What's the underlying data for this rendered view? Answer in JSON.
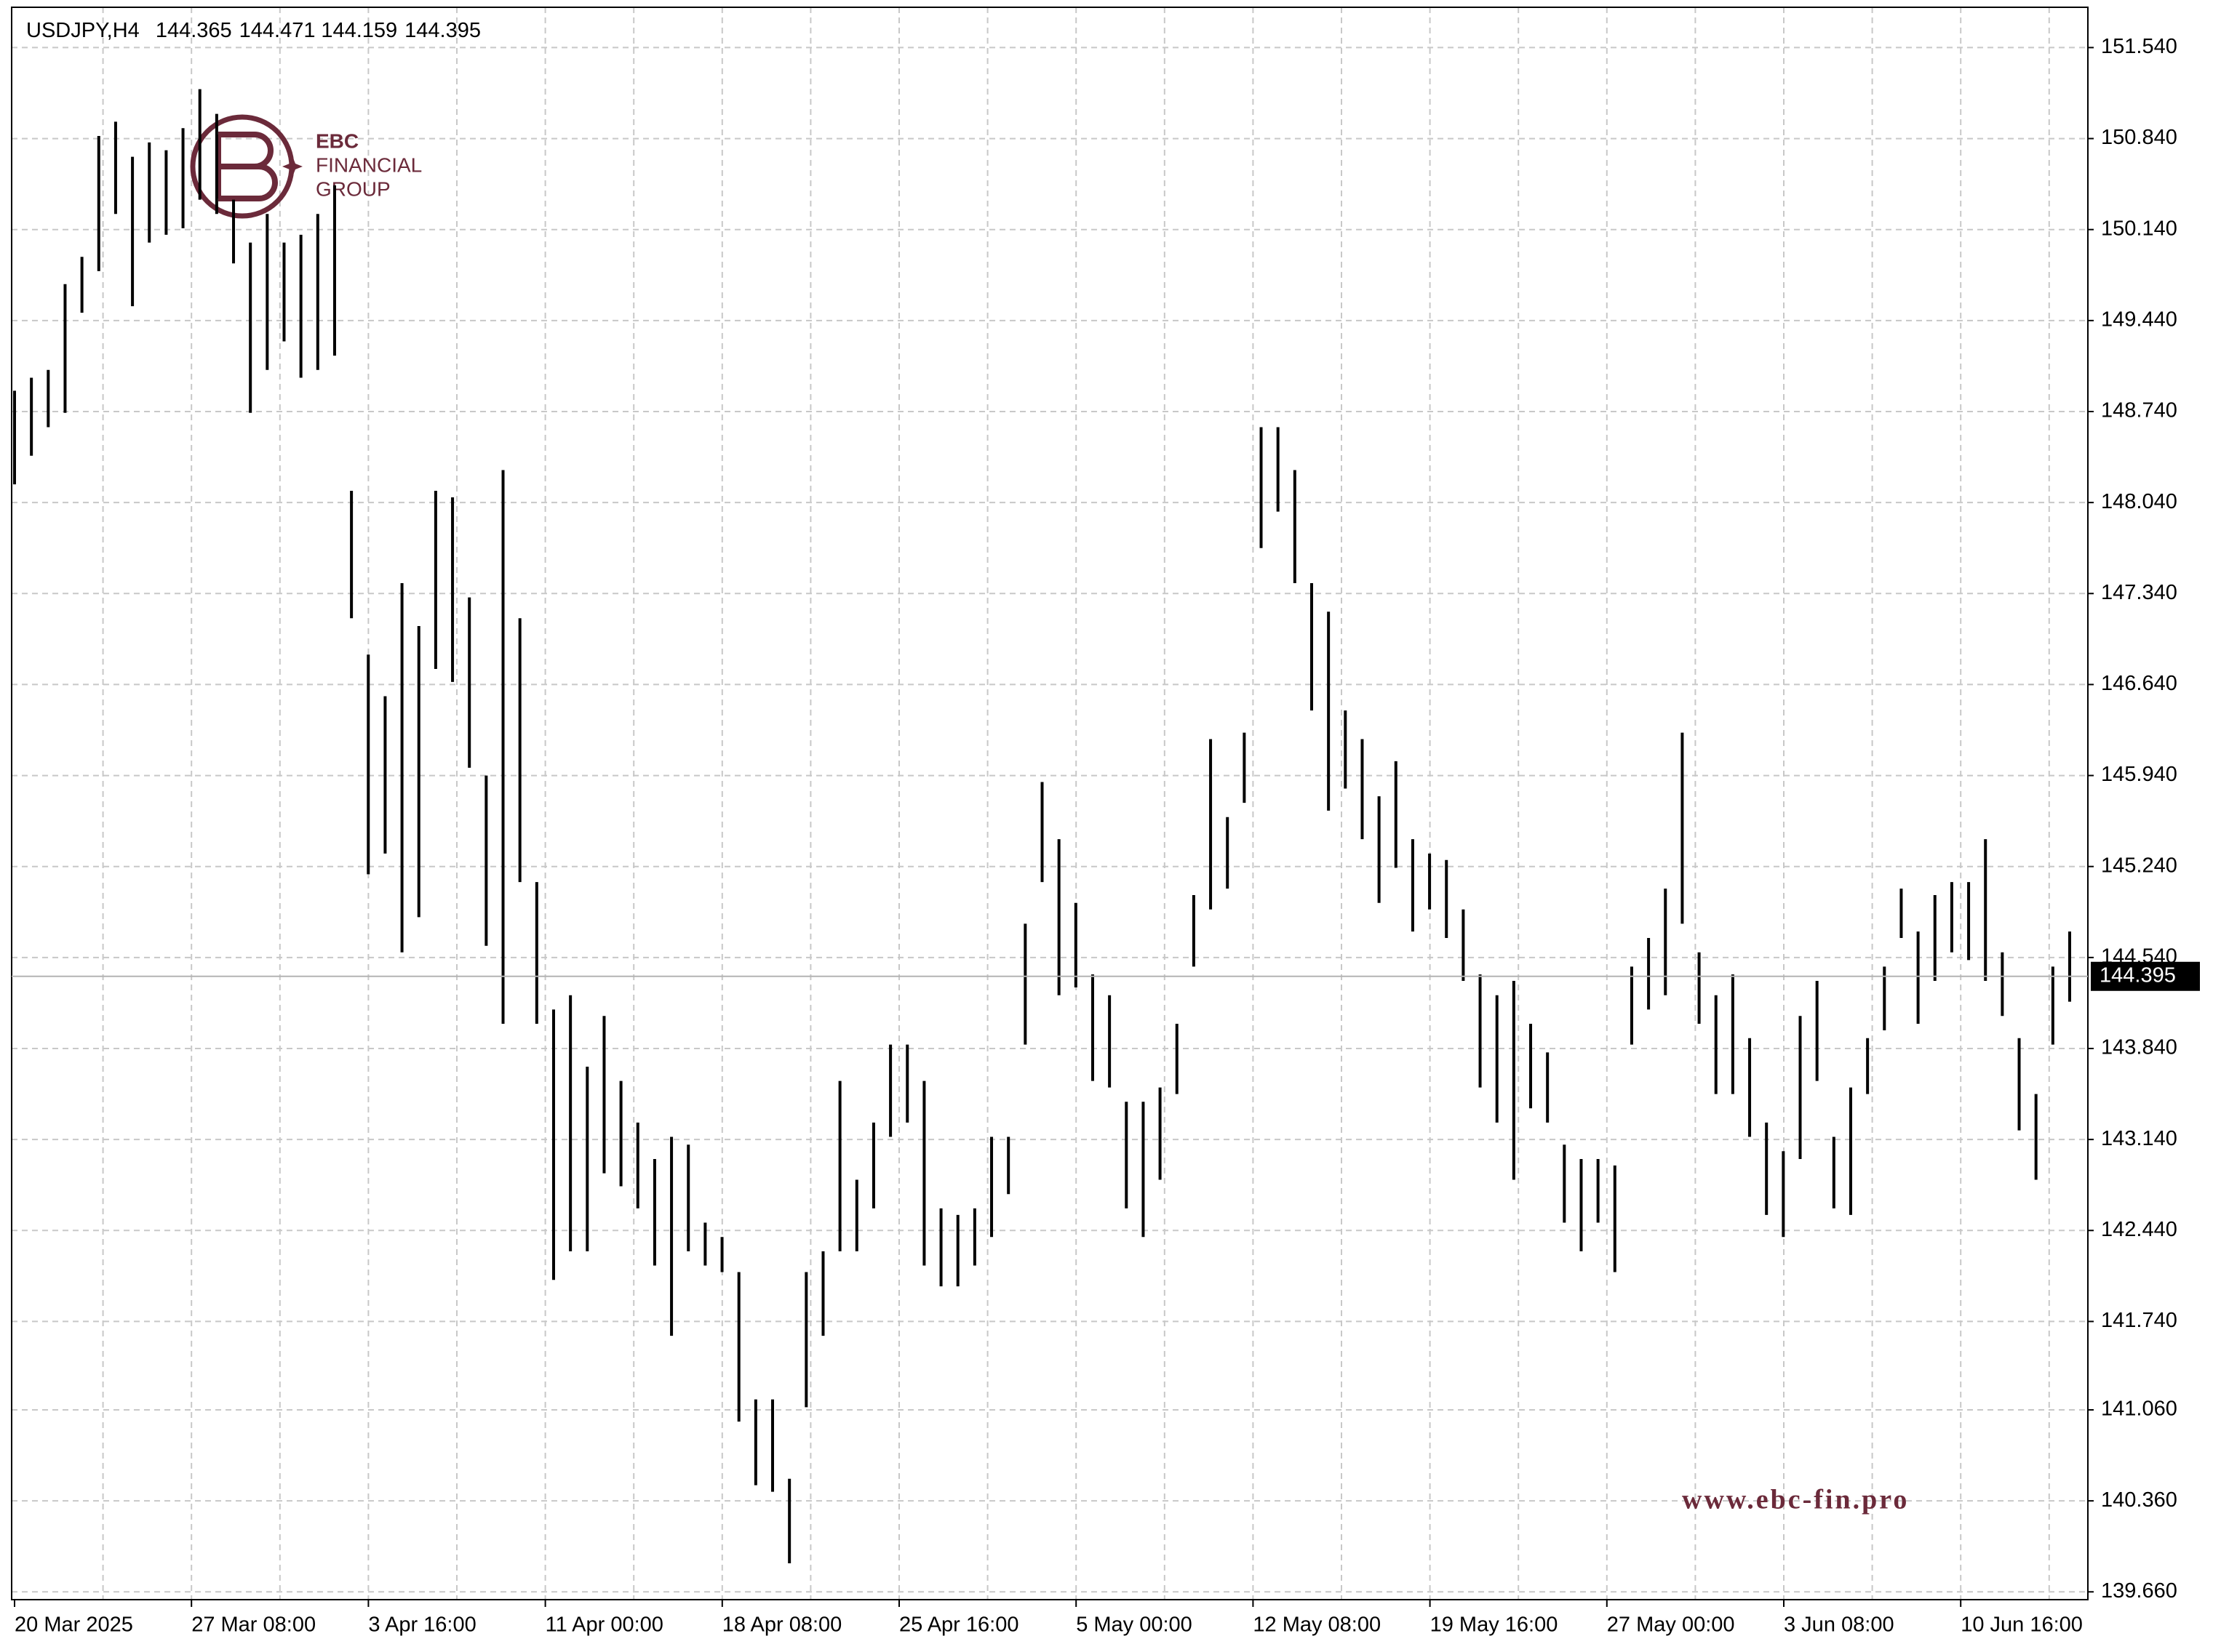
{
  "chart_data": {
    "type": "ohlc",
    "title": "USDJPY,H4",
    "last_bar": [
      144.365,
      144.471,
      144.159,
      144.395
    ],
    "current_price": 144.395,
    "x_labels": [
      "20 Mar 2025",
      "27 Mar 08:00",
      "3 Apr 16:00",
      "11 Apr 00:00",
      "18 Apr 08:00",
      "25 Apr 16:00",
      "5 May 00:00",
      "12 May 08:00",
      "19 May 16:00",
      "27 May 00:00",
      "3 Jun 08:00",
      "10 Jun 16:00"
    ],
    "color": "#000000",
    "grid": true,
    "ylim": [
      139.6,
      151.85
    ],
    "yticks": [
      {
        "value": 151.54,
        "label": "151.540"
      },
      {
        "value": 150.84,
        "label": "150.840"
      },
      {
        "value": 150.14,
        "label": "150.140"
      },
      {
        "value": 149.44,
        "label": "149.440"
      },
      {
        "value": 148.74,
        "label": "148.740"
      },
      {
        "value": 148.04,
        "label": "148.040"
      },
      {
        "value": 147.34,
        "label": "147.340"
      },
      {
        "value": 146.64,
        "label": "146.640"
      },
      {
        "value": 145.94,
        "label": "145.940"
      },
      {
        "value": 145.24,
        "label": "145.240"
      },
      {
        "value": 144.54,
        "label": "144.540"
      },
      {
        "value": 143.84,
        "label": "143.840"
      },
      {
        "value": 143.14,
        "label": "143.140"
      },
      {
        "value": 142.44,
        "label": "142.440"
      },
      {
        "value": 141.74,
        "label": "141.740"
      },
      {
        "value": 141.06,
        "label": "141.060"
      },
      {
        "value": 140.36,
        "label": "140.360"
      },
      {
        "value": 139.66,
        "label": "139.660"
      }
    ],
    "high": [
      148.9,
      149.0,
      149.06,
      149.72,
      149.93,
      150.86,
      150.97,
      150.7,
      150.81,
      150.75,
      150.92,
      151.22,
      151.03,
      150.37,
      150.04,
      150.26,
      150.04,
      150.1,
      150.26,
      150.48,
      148.13,
      146.87,
      146.55,
      147.42,
      147.09,
      148.13,
      148.08,
      147.31,
      145.94,
      148.29,
      147.15,
      145.12,
      144.14,
      144.25,
      143.7,
      144.09,
      143.59,
      143.27,
      142.99,
      143.16,
      143.1,
      142.5,
      142.39,
      142.12,
      141.14,
      141.14,
      140.53,
      142.12,
      142.28,
      143.59,
      142.83,
      143.27,
      143.87,
      143.87,
      143.59,
      142.61,
      142.56,
      142.61,
      143.16,
      143.16,
      144.8,
      145.89,
      145.45,
      144.96,
      144.41,
      144.25,
      143.43,
      143.43,
      143.54,
      144.03,
      145.02,
      146.22,
      145.62,
      146.27,
      148.62,
      148.62,
      148.29,
      147.42,
      147.2,
      146.44,
      146.22,
      145.78,
      146.05,
      145.45,
      145.34,
      145.29,
      144.91,
      144.41,
      144.25,
      144.36,
      144.03,
      143.81,
      143.1,
      142.99,
      142.99,
      142.94,
      144.47,
      144.69,
      145.07,
      146.27,
      144.58,
      144.25,
      144.41,
      143.92,
      143.27,
      143.05,
      144.09,
      144.36,
      143.16,
      143.54,
      143.92,
      144.47,
      145.07,
      144.74,
      145.02,
      145.12,
      145.12,
      145.45,
      144.58,
      143.92,
      143.49,
      144.47,
      144.74
    ],
    "low": [
      148.18,
      148.4,
      148.62,
      148.73,
      149.5,
      149.82,
      150.26,
      149.55,
      150.04,
      150.1,
      150.15,
      150.37,
      150.26,
      149.88,
      148.73,
      149.06,
      149.28,
      149.0,
      149.06,
      149.17,
      147.15,
      145.18,
      145.34,
      144.58,
      144.85,
      146.76,
      146.66,
      146.0,
      144.63,
      144.03,
      145.12,
      144.03,
      142.06,
      142.28,
      142.28,
      142.88,
      142.78,
      142.61,
      142.17,
      141.63,
      142.28,
      142.17,
      142.12,
      140.97,
      140.48,
      140.43,
      139.88,
      141.08,
      141.63,
      142.28,
      142.28,
      142.61,
      143.16,
      143.27,
      142.17,
      142.01,
      142.01,
      142.17,
      142.39,
      142.72,
      143.87,
      145.12,
      144.25,
      144.31,
      143.59,
      143.54,
      142.61,
      142.39,
      142.83,
      143.49,
      144.47,
      144.91,
      145.07,
      145.73,
      147.69,
      147.97,
      147.42,
      146.44,
      145.67,
      145.84,
      145.45,
      144.96,
      145.23,
      144.74,
      144.91,
      144.69,
      144.36,
      143.54,
      143.27,
      142.83,
      143.38,
      143.27,
      142.5,
      142.28,
      142.5,
      142.12,
      143.87,
      144.14,
      144.25,
      144.8,
      144.03,
      143.49,
      143.49,
      143.16,
      142.56,
      142.39,
      142.99,
      143.59,
      142.61,
      142.56,
      143.49,
      143.98,
      144.69,
      144.03,
      144.36,
      144.58,
      144.52,
      144.36,
      144.09,
      143.21,
      142.83,
      143.87,
      144.2
    ]
  },
  "watermark": {
    "brand": [
      "EBC",
      "FINANCIAL",
      "GROUP"
    ],
    "url": "www.ebc-fin.pro"
  }
}
